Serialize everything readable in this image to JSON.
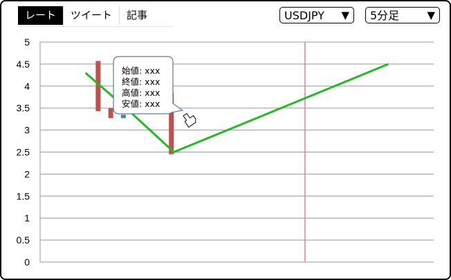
{
  "tabs": [
    {
      "label": "レート",
      "active": true
    },
    {
      "label": "ツイート",
      "active": false
    },
    {
      "label": "記事",
      "active": false
    }
  ],
  "pair_select": {
    "value": "USDJPY"
  },
  "interval_select": {
    "value": "5分足"
  },
  "tooltip": {
    "open": "始値: xxx",
    "close": "終値: xxx",
    "high": "高値: xxx",
    "low": "安値: xxx"
  },
  "colors": {
    "line": "#22bb22",
    "candle": "#c0504d",
    "candle_small": "#4f81bd",
    "current_time_line": "#e08090",
    "grid": "#999999"
  },
  "chart_data": {
    "type": "line",
    "ylim": [
      0,
      5
    ],
    "y_ticks": [
      "0",
      "0.5",
      "1",
      "1.5",
      "2",
      "2.5",
      "3",
      "3.5",
      "4",
      "4.5",
      "5"
    ],
    "grid": true,
    "series": [
      {
        "values": [
          {
            "x": 0,
            "y": 4.3
          },
          {
            "x": 1.2,
            "y": 3.7
          },
          {
            "x": 1.7,
            "y": 3.45
          },
          {
            "x": 3.5,
            "y": 2.5
          },
          {
            "x": 12,
            "y": 4.5
          }
        ]
      }
    ],
    "candles": [
      {
        "x": 0.5,
        "low": 3.43,
        "high": 4.57,
        "color": "candle"
      },
      {
        "x": 1.0,
        "low": 3.27,
        "high": 3.5,
        "color": "candle"
      },
      {
        "x": 1.5,
        "low": 3.27,
        "high": 3.35,
        "color": "candle_small"
      },
      {
        "x": 3.4,
        "low": 2.45,
        "high": 3.85,
        "color": "candle"
      }
    ],
    "x_range": [
      -1.8,
      13.8
    ],
    "current_time_x": 8.7
  }
}
